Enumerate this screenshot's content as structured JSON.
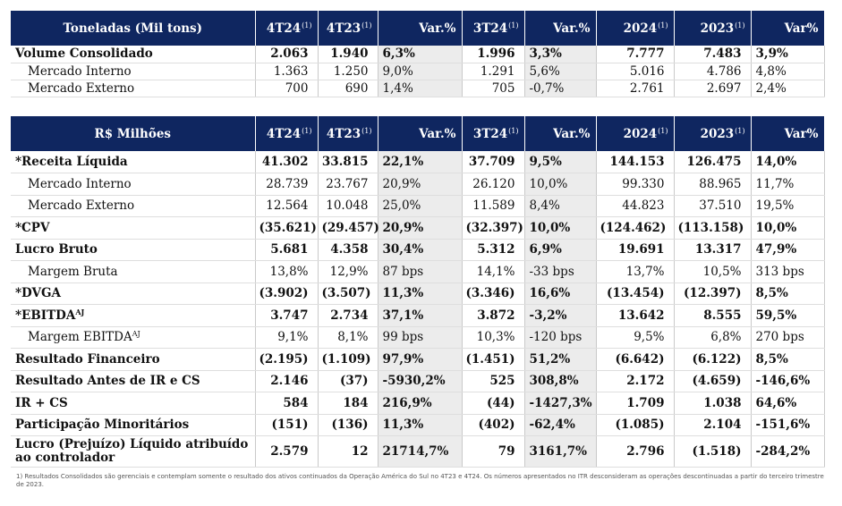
{
  "volume_table": {
    "headers": [
      "Toneladas (Mil tons)",
      "4T24",
      "4T23",
      "Var.%",
      "3T24",
      "Var.%",
      "2024",
      "2023",
      "Var%"
    ],
    "header_notes": [
      "",
      "(1)",
      "(1)",
      "",
      "(1)",
      "",
      "(1)",
      "(1)",
      ""
    ],
    "rows": [
      {
        "bold": true,
        "sub": false,
        "cells": [
          "Volume Consolidado",
          "2.063",
          "1.940",
          "6,3%",
          "1.996",
          "3,3%",
          "7.777",
          "7.483",
          "3,9%"
        ]
      },
      {
        "bold": false,
        "sub": true,
        "cells": [
          "Mercado Interno",
          "1.363",
          "1.250",
          "9,0%",
          "1.291",
          "5,6%",
          "5.016",
          "4.786",
          "4,8%"
        ]
      },
      {
        "bold": false,
        "sub": true,
        "cells": [
          "Mercado Externo",
          "700",
          "690",
          "1,4%",
          "705",
          "-0,7%",
          "2.761",
          "2.697",
          "2,4%"
        ]
      }
    ]
  },
  "financial_table": {
    "headers": [
      "R$ Milhões",
      "4T24",
      "4T23",
      "Var.%",
      "3T24",
      "Var.%",
      "2024",
      "2023",
      "Var%"
    ],
    "header_notes": [
      "",
      "(1)",
      "(1)",
      "",
      "(1)",
      "",
      "(1)",
      "(1)",
      ""
    ],
    "rows": [
      {
        "bold": true,
        "sub": false,
        "cells": [
          "*Receita Líquida",
          "41.302",
          "33.815",
          "22,1%",
          "37.709",
          "9,5%",
          "144.153",
          "126.475",
          "14,0%"
        ]
      },
      {
        "bold": false,
        "sub": true,
        "cells": [
          "Mercado Interno",
          "28.739",
          "23.767",
          "20,9%",
          "26.120",
          "10,0%",
          "99.330",
          "88.965",
          "11,7%"
        ]
      },
      {
        "bold": false,
        "sub": true,
        "cells": [
          "Mercado Externo",
          "12.564",
          "10.048",
          "25,0%",
          "11.589",
          "8,4%",
          "44.823",
          "37.510",
          "19,5%"
        ]
      },
      {
        "bold": true,
        "sub": false,
        "cells": [
          "*CPV",
          "(35.621)",
          "(29.457)",
          "20,9%",
          "(32.397)",
          "10,0%",
          "(124.462)",
          "(113.158)",
          "10,0%"
        ]
      },
      {
        "bold": true,
        "sub": false,
        "cells": [
          "Lucro Bruto",
          "5.681",
          "4.358",
          "30,4%",
          "5.312",
          "6,9%",
          "19.691",
          "13.317",
          "47,9%"
        ]
      },
      {
        "bold": false,
        "sub": true,
        "cells": [
          "Margem Bruta",
          "13,8%",
          "12,9%",
          "87 bps",
          "14,1%",
          "-33 bps",
          "13,7%",
          "10,5%",
          "313 bps"
        ]
      },
      {
        "bold": true,
        "sub": false,
        "cells": [
          "*DVGA",
          "(3.902)",
          "(3.507)",
          "11,3%",
          "(3.346)",
          "16,6%",
          "(13.454)",
          "(12.397)",
          "8,5%"
        ]
      },
      {
        "bold": true,
        "sub": false,
        "label_sup": "AJ",
        "cells": [
          "*EBITDA",
          "3.747",
          "2.734",
          "37,1%",
          "3.872",
          "-3,2%",
          "13.642",
          "8.555",
          "59,5%"
        ]
      },
      {
        "bold": false,
        "sub": true,
        "label_sup": "AJ",
        "cells": [
          "Margem EBITDA",
          "9,1%",
          "8,1%",
          "99 bps",
          "10,3%",
          "-120 bps",
          "9,5%",
          "6,8%",
          "270 bps"
        ]
      },
      {
        "bold": true,
        "sub": false,
        "cells": [
          "Resultado Financeiro",
          "(2.195)",
          "(1.109)",
          "97,9%",
          "(1.451)",
          "51,2%",
          "(6.642)",
          "(6.122)",
          "8,5%"
        ]
      },
      {
        "bold": true,
        "sub": false,
        "cells": [
          "Resultado Antes de IR e CS",
          "2.146",
          "(37)",
          "-5930,2%",
          "525",
          "308,8%",
          "2.172",
          "(4.659)",
          "-146,6%"
        ]
      },
      {
        "bold": true,
        "sub": false,
        "cells": [
          "IR + CS",
          "584",
          "184",
          "216,9%",
          "(44)",
          "-1427,3%",
          "1.709",
          "1.038",
          "64,6%"
        ]
      },
      {
        "bold": true,
        "sub": false,
        "cells": [
          "Participação Minoritários",
          "(151)",
          "(136)",
          "11,3%",
          "(402)",
          "-62,4%",
          "(1.085)",
          "2.104",
          "-151,6%"
        ]
      },
      {
        "bold": true,
        "sub": false,
        "tall": true,
        "cells": [
          "Lucro (Prejuízo) Líquido atribuído ao controlador",
          "2.579",
          "12",
          "21714,7%",
          "79",
          "3161,7%",
          "2.796",
          "(1.518)",
          "-284,2%"
        ]
      }
    ]
  },
  "footnote": "1) Resultados Consolidados são gerenciais e contemplam somente o resultado dos ativos continuados da Operação América do Sul no 4T23 e 4T24. Os números apresentados no ITR desconsideram as operações descontinuadas a partir do terceiro trimestre de 2023."
}
